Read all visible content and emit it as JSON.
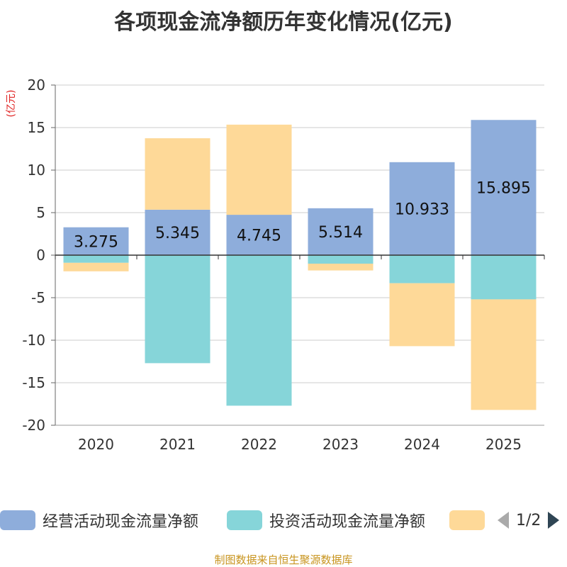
{
  "chart_data": {
    "type": "bar",
    "stacked": true,
    "title": "各项现金流净额历年变化情况(亿元)",
    "ylabel": "(亿元)",
    "xlabel": "",
    "ylim": [
      -20,
      20
    ],
    "yticks": [
      20,
      15,
      10,
      5,
      0,
      -5,
      -10,
      -15,
      -20
    ],
    "categories": [
      "2020",
      "2021",
      "2022",
      "2023",
      "2024",
      "2025"
    ],
    "series": [
      {
        "name": "经营活动现金流量净额",
        "color": "#8eaddb",
        "values": [
          3.275,
          5.345,
          4.745,
          5.514,
          10.933,
          15.895
        ],
        "labels": [
          "3.275",
          "5.345",
          "4.745",
          "5.514",
          "10.933",
          "15.895"
        ]
      },
      {
        "name": "投资活动现金流量净额",
        "color": "#86d5d9",
        "values": [
          -0.9,
          -12.7,
          -17.7,
          -1.0,
          -3.3,
          -5.2
        ]
      },
      {
        "name": "",
        "color": "#fed998",
        "values": [
          -1.0,
          8.4,
          10.6,
          -0.8,
          -7.4,
          -13.0
        ]
      }
    ]
  },
  "legend": {
    "items": [
      {
        "label": "经营活动现金流量净额",
        "color": "#8eaddb"
      },
      {
        "label": "投资活动现金流量净额",
        "color": "#86d5d9"
      },
      {
        "label": "",
        "color": "#fed998"
      }
    ],
    "page_text": "1/2"
  },
  "source_note": "制图数据来自恒生聚源数据库"
}
